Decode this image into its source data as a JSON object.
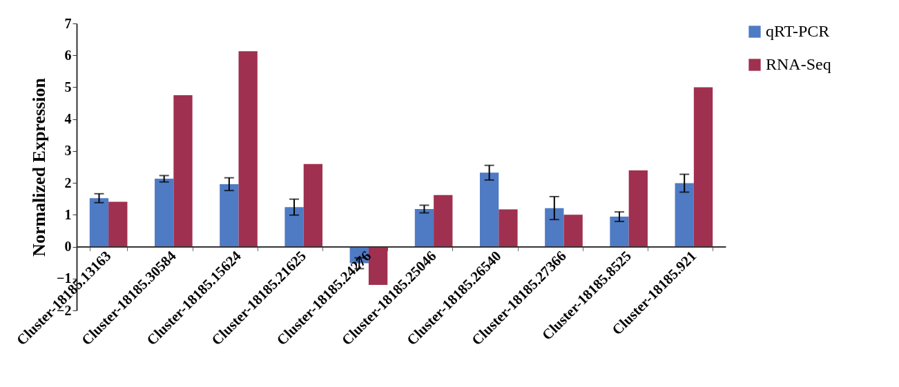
{
  "chart_data": {
    "type": "bar",
    "ylabel": "Normalized Expression",
    "categories": [
      "Cluster-18185.13163",
      "Cluster-18185.30584",
      "Cluster-18185.15624",
      "Cluster-18185.21625",
      "Cluster-18185.24276",
      "Cluster-18185.25046",
      "Cluster-18185.26540",
      "Cluster-18185.27366",
      "Cluster-18185.8525",
      "Cluster-18185.921"
    ],
    "series": [
      {
        "name": "qRT-PCR",
        "color": "#4f7bc4",
        "values": [
          1.52,
          2.13,
          1.96,
          1.24,
          -0.52,
          1.18,
          2.32,
          1.21,
          0.94,
          1.99
        ],
        "errors": [
          0.14,
          0.1,
          0.2,
          0.25,
          0.17,
          0.12,
          0.23,
          0.36,
          0.15,
          0.28
        ]
      },
      {
        "name": "RNA-Seq",
        "color": "#a03050",
        "values": [
          1.41,
          4.75,
          6.13,
          2.59,
          -1.2,
          1.62,
          1.17,
          1.0,
          2.39,
          5.0
        ]
      }
    ],
    "ylim": [
      -2,
      7
    ],
    "yticks": [
      -2,
      -1,
      0,
      1,
      2,
      3,
      4,
      5,
      6,
      7
    ],
    "grid": false,
    "legend": "right"
  }
}
